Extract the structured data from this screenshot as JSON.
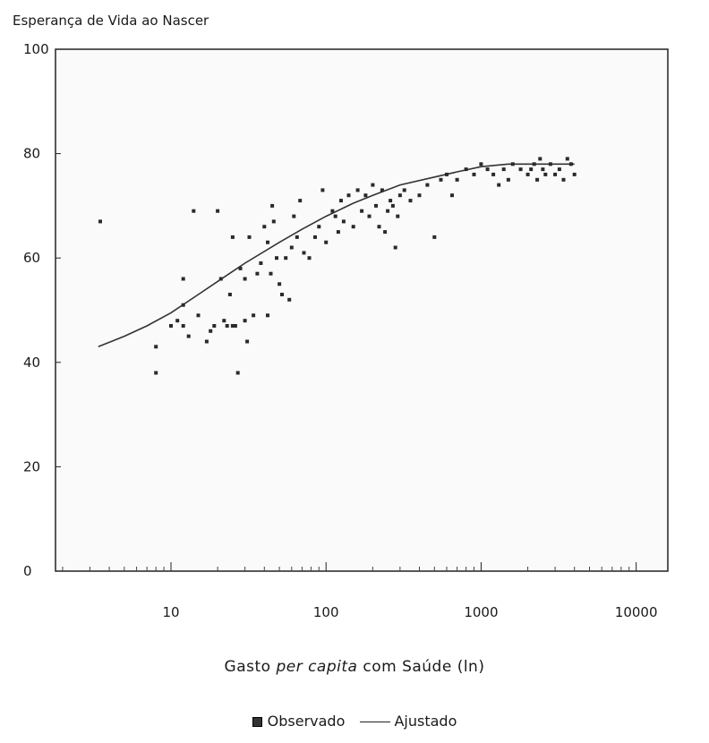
{
  "chart_data": {
    "type": "scatter",
    "title": "Esperança de Vida ao Nascer",
    "xlabel_pre": "Gasto ",
    "xlabel_em": "per capita",
    "xlabel_post": " com Saúde (ln)",
    "x_scale": "log",
    "xlim": [
      1.8,
      16000
    ],
    "ylim": [
      0,
      100
    ],
    "x_ticks": [
      10,
      100,
      1000,
      10000
    ],
    "x_tick_labels": [
      "10",
      "100",
      "1000",
      "10000"
    ],
    "y_ticks": [
      0,
      20,
      40,
      60,
      80,
      100
    ],
    "y_tick_labels": [
      "0",
      "20",
      "40",
      "60",
      "80",
      "100"
    ],
    "legend": {
      "observed": "Observado",
      "fitted": "Ajustado"
    },
    "series": [
      {
        "name": "Observado",
        "kind": "scatter",
        "points": [
          [
            3.5,
            67
          ],
          [
            8,
            43
          ],
          [
            8,
            38
          ],
          [
            10,
            47
          ],
          [
            11,
            48
          ],
          [
            12,
            51
          ],
          [
            12,
            47
          ],
          [
            12,
            56
          ],
          [
            13,
            45
          ],
          [
            14,
            69
          ],
          [
            15,
            49
          ],
          [
            17,
            44
          ],
          [
            18,
            46
          ],
          [
            19,
            47
          ],
          [
            20,
            69
          ],
          [
            21,
            56
          ],
          [
            22,
            48
          ],
          [
            23,
            47
          ],
          [
            24,
            53
          ],
          [
            25,
            47
          ],
          [
            25,
            64
          ],
          [
            26,
            47
          ],
          [
            27,
            38
          ],
          [
            28,
            58
          ],
          [
            30,
            48
          ],
          [
            30,
            56
          ],
          [
            31,
            44
          ],
          [
            32,
            64
          ],
          [
            34,
            49
          ],
          [
            36,
            57
          ],
          [
            38,
            59
          ],
          [
            40,
            66
          ],
          [
            42,
            49
          ],
          [
            42,
            63
          ],
          [
            44,
            57
          ],
          [
            45,
            70
          ],
          [
            46,
            67
          ],
          [
            48,
            60
          ],
          [
            50,
            55
          ],
          [
            52,
            53
          ],
          [
            55,
            60
          ],
          [
            58,
            52
          ],
          [
            60,
            62
          ],
          [
            62,
            68
          ],
          [
            65,
            64
          ],
          [
            68,
            71
          ],
          [
            72,
            61
          ],
          [
            78,
            60
          ],
          [
            85,
            64
          ],
          [
            90,
            66
          ],
          [
            95,
            73
          ],
          [
            100,
            63
          ],
          [
            110,
            69
          ],
          [
            115,
            68
          ],
          [
            120,
            65
          ],
          [
            125,
            71
          ],
          [
            130,
            67
          ],
          [
            140,
            72
          ],
          [
            150,
            66
          ],
          [
            160,
            73
          ],
          [
            170,
            69
          ],
          [
            180,
            72
          ],
          [
            190,
            68
          ],
          [
            200,
            74
          ],
          [
            210,
            70
          ],
          [
            220,
            66
          ],
          [
            230,
            73
          ],
          [
            240,
            65
          ],
          [
            250,
            69
          ],
          [
            260,
            71
          ],
          [
            270,
            70
          ],
          [
            280,
            62
          ],
          [
            290,
            68
          ],
          [
            300,
            72
          ],
          [
            320,
            73
          ],
          [
            350,
            71
          ],
          [
            400,
            72
          ],
          [
            450,
            74
          ],
          [
            500,
            64
          ],
          [
            550,
            75
          ],
          [
            600,
            76
          ],
          [
            650,
            72
          ],
          [
            700,
            75
          ],
          [
            800,
            77
          ],
          [
            900,
            76
          ],
          [
            1000,
            78
          ],
          [
            1100,
            77
          ],
          [
            1200,
            76
          ],
          [
            1300,
            74
          ],
          [
            1400,
            77
          ],
          [
            1500,
            75
          ],
          [
            1600,
            78
          ],
          [
            1800,
            77
          ],
          [
            2000,
            76
          ],
          [
            2100,
            77
          ],
          [
            2200,
            78
          ],
          [
            2300,
            75
          ],
          [
            2400,
            79
          ],
          [
            2500,
            77
          ],
          [
            2600,
            76
          ],
          [
            2800,
            78
          ],
          [
            3000,
            76
          ],
          [
            3200,
            77
          ],
          [
            3400,
            75
          ],
          [
            3600,
            79
          ],
          [
            3800,
            78
          ],
          [
            4000,
            76
          ]
        ]
      },
      {
        "name": "Ajustado",
        "kind": "line",
        "points": [
          [
            3.4,
            43
          ],
          [
            5,
            45
          ],
          [
            7,
            47
          ],
          [
            10,
            49.5
          ],
          [
            15,
            53
          ],
          [
            20,
            55.5
          ],
          [
            30,
            59
          ],
          [
            50,
            63
          ],
          [
            70,
            65.5
          ],
          [
            100,
            68
          ],
          [
            150,
            70.5
          ],
          [
            200,
            72
          ],
          [
            300,
            74
          ],
          [
            500,
            75.5
          ],
          [
            700,
            76.5
          ],
          [
            1000,
            77.5
          ],
          [
            1500,
            78
          ],
          [
            2000,
            78
          ],
          [
            3000,
            78
          ],
          [
            4000,
            78
          ]
        ]
      }
    ]
  }
}
